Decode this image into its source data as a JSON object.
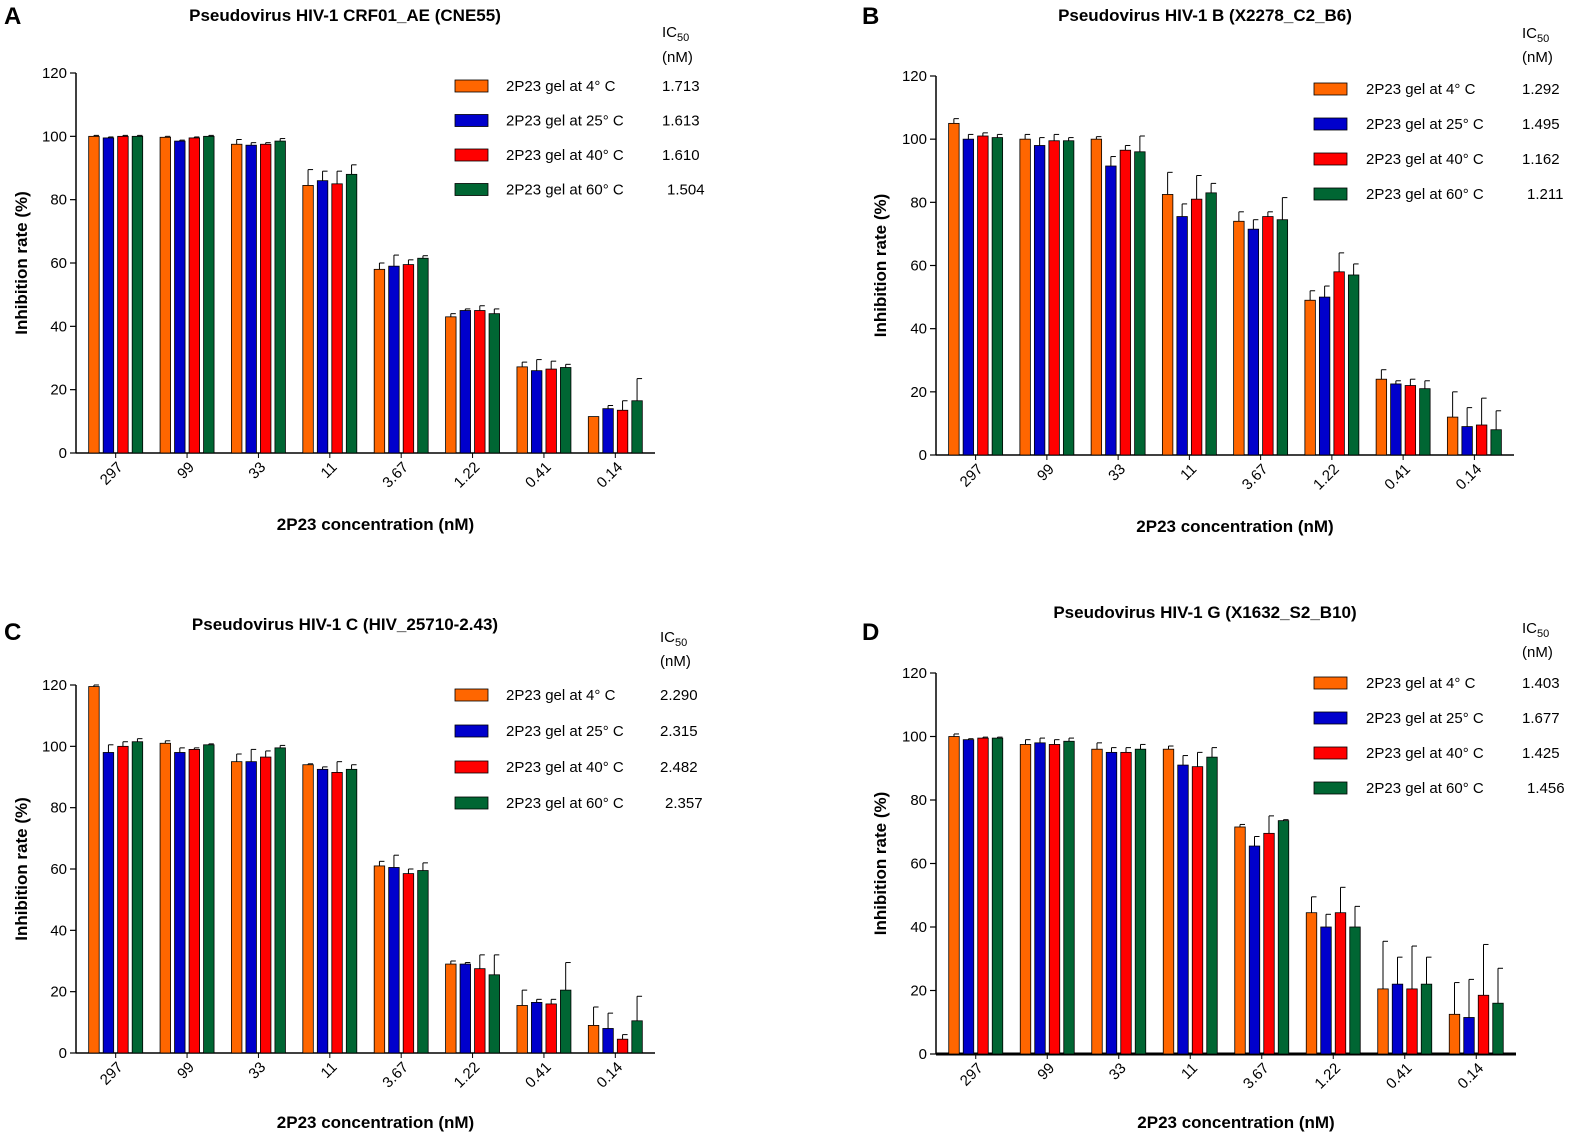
{
  "colors": {
    "series": [
      "#FF6600",
      "#0000CC",
      "#FF0000",
      "#006633"
    ],
    "axis": "#000000"
  },
  "ic50_header": {
    "line1": "IC",
    "sub": "50",
    "line2": "(nM)"
  },
  "chart_data": [
    {
      "panel": "A",
      "type": "bar",
      "title": "Pseudovirus HIV-1 CRF01_AE (CNE55)",
      "xlabel": "2P23 concentration (nM)",
      "ylabel": "Inhibition rate (%)",
      "ylim": [
        0,
        120
      ],
      "yticks": [
        "0",
        "20",
        "40",
        "60",
        "80",
        "100",
        "120"
      ],
      "categories": [
        "297",
        "99",
        "33",
        "11",
        "3.67",
        "1.22",
        "0.41",
        "0.14"
      ],
      "series": [
        {
          "name": "2P23 gel at 4° C",
          "ic50": "1.713",
          "values": [
            100,
            99.7,
            97.5,
            84.5,
            58,
            43,
            27.2,
            11.5
          ],
          "errors": [
            0.3,
            0.3,
            1.5,
            5,
            2,
            1,
            1.5,
            0
          ]
        },
        {
          "name": "2P23 gel at  25° C",
          "ic50": "1.613",
          "values": [
            99.5,
            98.5,
            97.2,
            86,
            59,
            45,
            26,
            14
          ],
          "errors": [
            0.3,
            0.3,
            0.8,
            3,
            3.5,
            0.5,
            3.5,
            1
          ]
        },
        {
          "name": "2P23 gel  at 40° C",
          "ic50": "1.610",
          "values": [
            100,
            99.5,
            97.5,
            85,
            59.5,
            45,
            26.5,
            13.5
          ],
          "errors": [
            0.3,
            0.3,
            0.5,
            4,
            1.5,
            1.5,
            2.5,
            3
          ]
        },
        {
          "name": "2P23 gel at  60° C",
          "ic50": "1.504",
          "values": [
            100,
            100,
            98.5,
            88,
            61.5,
            44,
            27,
            16.5
          ],
          "errors": [
            0.3,
            0.3,
            0.8,
            3,
            0.8,
            1.5,
            1,
            7
          ]
        }
      ]
    },
    {
      "panel": "B",
      "type": "bar",
      "title": "Pseudovirus HIV-1 B (X2278_C2_B6)",
      "xlabel": "2P23 concentration (nM)",
      "ylabel": "Inhibition rate (%)",
      "ylim": [
        0,
        120
      ],
      "yticks": [
        "0",
        "20",
        "40",
        "60",
        "80",
        "100",
        "120"
      ],
      "categories": [
        "297",
        "99",
        "33",
        "11",
        "3.67",
        "1.22",
        "0.41",
        "0.14"
      ],
      "series": [
        {
          "name": "2P23 gel at 4° C",
          "ic50": "1.292",
          "values": [
            105,
            100,
            100,
            82.5,
            74,
            49,
            24,
            12
          ],
          "errors": [
            1.5,
            1.5,
            0.8,
            7,
            3,
            3,
            3,
            8
          ]
        },
        {
          "name": "2P23 gel at  25° C",
          "ic50": "1.495",
          "values": [
            100,
            98,
            91.5,
            75.5,
            71.5,
            50,
            22.5,
            9
          ],
          "errors": [
            1.5,
            2.5,
            3,
            4,
            3,
            3.5,
            1,
            6
          ]
        },
        {
          "name": "2P23 gel  at 40° C",
          "ic50": "1.162",
          "values": [
            101,
            99.5,
            96.5,
            81,
            75.5,
            58,
            22,
            9.5
          ],
          "errors": [
            1,
            2,
            1.5,
            7.5,
            1.5,
            6,
            2,
            8.5
          ]
        },
        {
          "name": "2P23 gel at  60° C",
          "ic50": "1.211",
          "values": [
            100.5,
            99.5,
            96,
            83,
            74.5,
            57,
            21,
            8
          ],
          "errors": [
            1,
            1,
            5,
            3,
            7,
            3.5,
            2.5,
            6
          ]
        }
      ]
    },
    {
      "panel": "C",
      "type": "bar",
      "title": "Pseudovirus HIV-1 C (HIV_25710-2.43)",
      "xlabel": "2P23 concentration (nM)",
      "ylabel": "Inhibition rate (%)",
      "ylim": [
        0,
        120
      ],
      "yticks": [
        "0",
        "20",
        "40",
        "60",
        "80",
        "100",
        "120"
      ],
      "categories": [
        "297",
        "99",
        "33",
        "11",
        "3.67",
        "1.22",
        "0.41",
        "0.14"
      ],
      "series": [
        {
          "name": "2P23 gel at 4° C",
          "ic50": "2.290",
          "values": [
            119.5,
            101,
            95,
            94,
            61,
            29,
            15.5,
            9
          ],
          "errors": [
            0.5,
            0.8,
            2.5,
            0.3,
            1.5,
            1,
            5,
            6
          ]
        },
        {
          "name": "2P23 gel at  25° C",
          "ic50": "2.315",
          "values": [
            98,
            98,
            95,
            92.5,
            60.5,
            29,
            16.5,
            8
          ],
          "errors": [
            2.5,
            1.5,
            4,
            0.8,
            4,
            0.5,
            1,
            5
          ]
        },
        {
          "name": "2P23 gel  at 40° C",
          "ic50": "2.482",
          "values": [
            100,
            99,
            96.5,
            91.5,
            58.5,
            27.5,
            16,
            4.5
          ],
          "errors": [
            1.5,
            0.5,
            2,
            3.5,
            1.5,
            4.5,
            1.5,
            1.5
          ]
        },
        {
          "name": "2P23 gel at  60° C",
          "ic50": "2.357",
          "values": [
            101.5,
            100.5,
            99.5,
            92.5,
            59.5,
            25.5,
            20.5,
            10.5
          ],
          "errors": [
            1,
            0.3,
            0.8,
            1.5,
            2.5,
            6.5,
            9,
            8
          ]
        }
      ]
    },
    {
      "panel": "D",
      "type": "bar",
      "title": "Pseudovirus HIV-1 G (X1632_S2_B10)",
      "xlabel": "2P23 concentration (nM)",
      "ylabel": "Inhibition rate (%)",
      "ylim": [
        0,
        120
      ],
      "yticks": [
        "0",
        "20",
        "40",
        "60",
        "80",
        "100",
        "120"
      ],
      "categories": [
        "297",
        "99",
        "33",
        "11",
        "3.67",
        "1.22",
        "0.41",
        "0.14"
      ],
      "series": [
        {
          "name": "2P23 gel at 4° C",
          "ic50": "1.403",
          "values": [
            100,
            97.5,
            96,
            96,
            71.5,
            44.5,
            20.5,
            12.5
          ],
          "errors": [
            0.8,
            1.5,
            2,
            1,
            0.8,
            5,
            15,
            10
          ]
        },
        {
          "name": "2P23 gel at  25° C",
          "ic50": "1.677",
          "values": [
            99,
            98,
            95,
            91,
            65.5,
            40,
            22,
            11.5
          ],
          "errors": [
            0.3,
            1.5,
            1.5,
            3,
            3,
            4,
            8.5,
            12
          ]
        },
        {
          "name": "2P23 gel  at 40° C",
          "ic50": "1.425",
          "values": [
            99.5,
            97.5,
            95,
            90.5,
            69.5,
            44.5,
            20.5,
            18.5
          ],
          "errors": [
            0.3,
            1.5,
            1.5,
            4.5,
            5.5,
            8,
            13.5,
            16
          ]
        },
        {
          "name": "2P23 gel at  60° C",
          "ic50": "1.456",
          "values": [
            99.5,
            98.5,
            96,
            93.5,
            73.5,
            40,
            22,
            16
          ],
          "errors": [
            0.3,
            1,
            1.5,
            3,
            0.3,
            6.5,
            8.5,
            11
          ]
        }
      ]
    }
  ]
}
